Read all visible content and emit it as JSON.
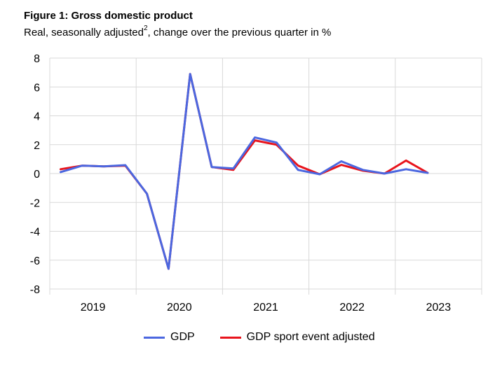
{
  "header": {
    "title": "Figure 1: Gross domestic product",
    "subtitle_main": "Real, seasonally adjusted",
    "subtitle_sup": "2",
    "subtitle_rest": ", change over the previous quarter in %"
  },
  "chart_data": {
    "type": "line",
    "title": "Figure 1: Gross domestic product",
    "subtitle": "Real, seasonally adjusted², change over the previous quarter in %",
    "xlabel": "",
    "ylabel": "",
    "ylim": [
      -8,
      8
    ],
    "yticks": [
      8,
      6,
      4,
      2,
      0,
      -2,
      -4,
      -6,
      -8
    ],
    "ytick_labels": [
      "8",
      "6",
      "4",
      "2",
      "0",
      "-2",
      "-4",
      "-6",
      "-8"
    ],
    "year_labels": [
      "2019",
      "2020",
      "2021",
      "2022",
      "2023"
    ],
    "x": [
      "2019Q1",
      "2019Q2",
      "2019Q3",
      "2019Q4",
      "2020Q1",
      "2020Q2",
      "2020Q3",
      "2020Q4",
      "2021Q1",
      "2021Q2",
      "2021Q3",
      "2021Q4",
      "2022Q1",
      "2022Q2",
      "2022Q3",
      "2022Q4",
      "2023Q1",
      "2023Q2",
      "2023Q3"
    ],
    "grid": true,
    "legend_position": "bottom",
    "series": [
      {
        "name": "GDP sport event adjusted",
        "color": "#e8141c",
        "values": [
          0.3,
          0.55,
          0.5,
          0.55,
          -1.4,
          -6.6,
          6.9,
          0.45,
          0.25,
          2.3,
          2.0,
          0.55,
          -0.05,
          0.6,
          0.2,
          0.0,
          0.9,
          0.05,
          null
        ]
      },
      {
        "name": "GDP",
        "color": "#4b67e0",
        "values": [
          0.1,
          0.55,
          0.5,
          0.58,
          -1.4,
          -6.6,
          6.9,
          0.45,
          0.35,
          2.5,
          2.15,
          0.25,
          -0.05,
          0.85,
          0.25,
          0.0,
          0.3,
          0.05,
          null
        ]
      }
    ]
  },
  "legend": {
    "items": [
      {
        "label": "GDP",
        "color": "#4b67e0"
      },
      {
        "label": "GDP sport event adjusted",
        "color": "#e8141c"
      }
    ]
  }
}
